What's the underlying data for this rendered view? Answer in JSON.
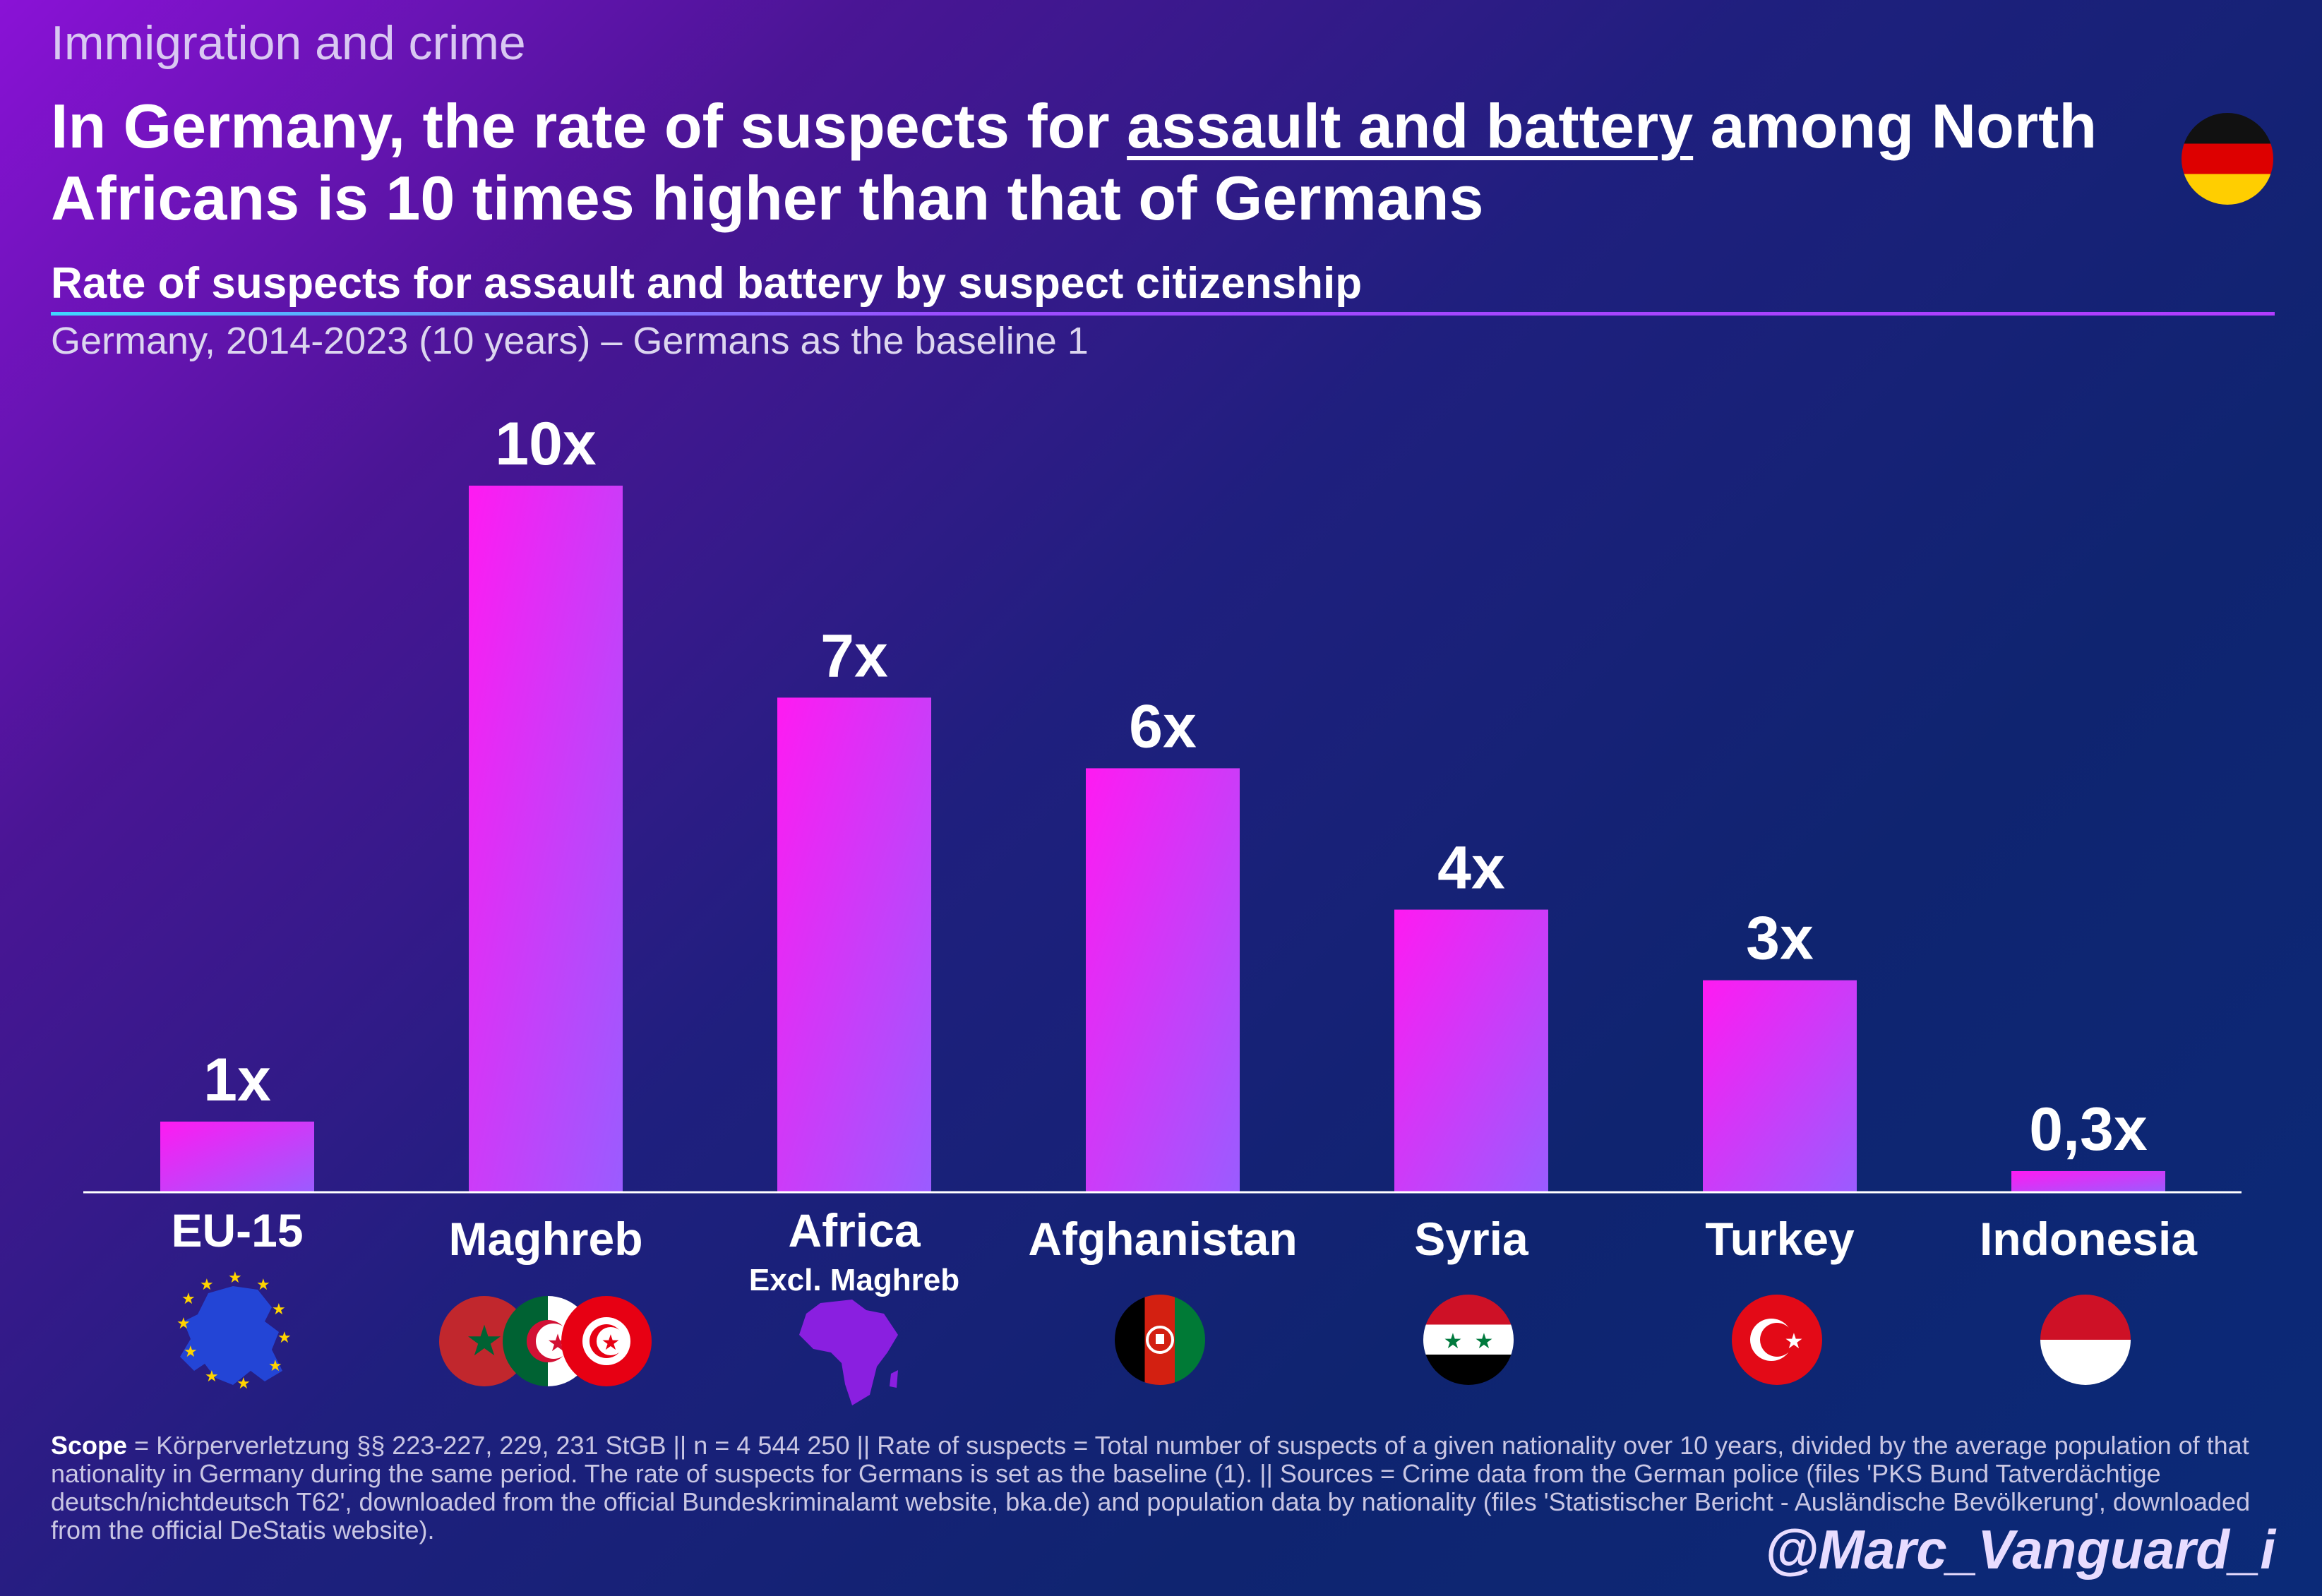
{
  "header": {
    "kicker": "Immigration and crime",
    "headline_pre": "In Germany, the rate of suspects for ",
    "headline_emph": "assault and battery",
    "headline_post": " among North Africans is 10 times higher than that of Germans",
    "subtitle": "Rate of suspects for assault and battery by suspect citizenship",
    "scope_line": "Germany, 2014-2023 (10 years) – Germans as the baseline 1"
  },
  "chart_data": {
    "type": "bar",
    "categories": [
      "EU-15",
      "Maghreb",
      "Africa",
      "Afghanistan",
      "Syria",
      "Turkey",
      "Indonesia"
    ],
    "category_sublabels": [
      "",
      "",
      "Excl. Maghreb",
      "",
      "",
      "",
      ""
    ],
    "values": [
      1,
      10,
      7,
      6,
      4,
      3,
      0.3
    ],
    "data_labels": [
      "1x",
      "10x",
      "7x",
      "6x",
      "4x",
      "3x",
      "0,3x"
    ],
    "ylim": [
      0,
      10
    ],
    "grid": false,
    "bar_gradient": [
      "#ff1af2",
      "#9a5cff"
    ]
  },
  "icons": [
    "eu-map-icon",
    "maghreb-flags-icon",
    "africa-map-icon",
    "afghanistan-flag-icon",
    "syria-flag-icon",
    "turkey-flag-icon",
    "indonesia-flag-icon"
  ],
  "footnote": {
    "scope_label": "Scope",
    "text": " = Körperverletzung §§ 223-227, 229, 231 StGB || n = 4 544 250 || Rate of suspects = Total number of suspects of a given nationality over 10 years, divided by the average population of that nationality in Germany during the same period. The rate of suspects for Germans is set as the baseline (1). || Sources = Crime data from the German police (files 'PKS Bund Tatverdächtige deutsch/nichtdeutsch T62', downloaded from the official Bundeskriminalamt website, bka.de) and population data by nationality (files 'Statistischer Bericht - Ausländische Bevölkerung', downloaded from the official DeStatis website)."
  },
  "handle": "@Marc_Vanguard_i"
}
